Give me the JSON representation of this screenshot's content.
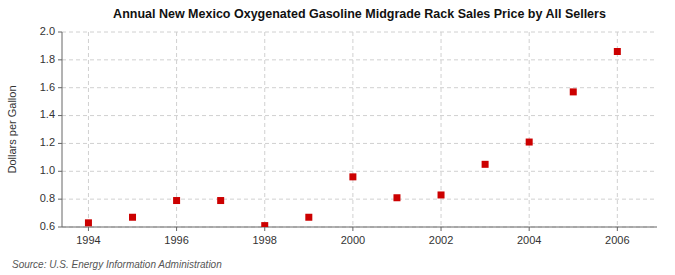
{
  "chart_data": {
    "type": "scatter",
    "title": "Annual New Mexico Oxygenated Gasoline Midgrade Rack Sales Price by All Sellers",
    "ylabel": "Dollars per Gallon",
    "source": "Source: U.S. Energy Information Administration",
    "x": [
      1994,
      1995,
      1996,
      1997,
      1998,
      1999,
      2000,
      2001,
      2002,
      2003,
      2004,
      2005,
      2006
    ],
    "values": [
      0.63,
      0.67,
      0.79,
      0.79,
      0.61,
      0.67,
      0.96,
      0.81,
      0.83,
      1.05,
      1.21,
      1.57,
      1.86
    ],
    "color": "#cc0000",
    "marker": "square",
    "grid": true,
    "xlim": [
      1993.4,
      2006.9
    ],
    "xticks": [
      1994,
      1996,
      1998,
      2000,
      2002,
      2004,
      2006
    ],
    "ylim": [
      0.6,
      2.0
    ],
    "yticks": [
      0.6,
      0.8,
      {
        "value": 1.0,
        "label": "1.0"
      },
      1.2,
      1.4,
      1.6,
      1.8,
      {
        "value": 2.0,
        "label": "2.0"
      }
    ]
  }
}
